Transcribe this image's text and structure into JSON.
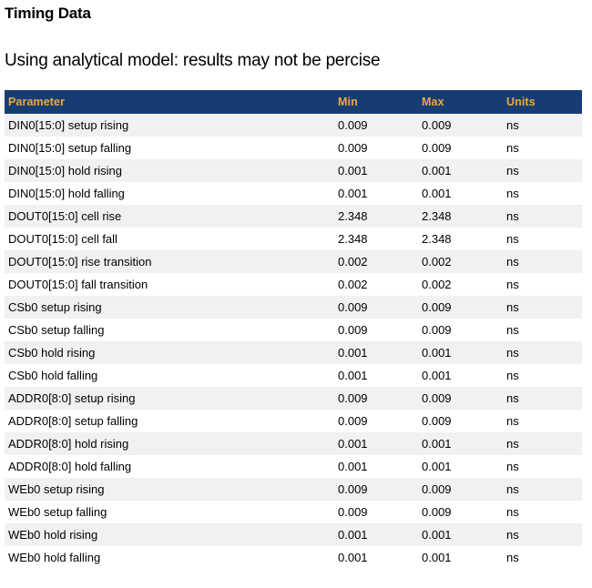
{
  "page": {
    "title": "Timing Data",
    "subtitle": "Using analytical model: results may not be percise"
  },
  "colors": {
    "header_bg": "#163d72",
    "header_text": "#f0a73c",
    "row_alt_bg": "#f0f1f1",
    "row_bg": "#ffffff",
    "text": "#000000"
  },
  "table": {
    "columns": [
      "Parameter",
      "Min",
      "Max",
      "Units"
    ],
    "rows": [
      {
        "parameter": "DIN0[15:0] setup rising",
        "min": "0.009",
        "max": "0.009",
        "units": "ns"
      },
      {
        "parameter": "DIN0[15:0] setup falling",
        "min": "0.009",
        "max": "0.009",
        "units": "ns"
      },
      {
        "parameter": "DIN0[15:0] hold rising",
        "min": "0.001",
        "max": "0.001",
        "units": "ns"
      },
      {
        "parameter": "DIN0[15:0] hold falling",
        "min": "0.001",
        "max": "0.001",
        "units": "ns"
      },
      {
        "parameter": "DOUT0[15:0] cell rise",
        "min": "2.348",
        "max": "2.348",
        "units": "ns"
      },
      {
        "parameter": "DOUT0[15:0] cell fall",
        "min": "2.348",
        "max": "2.348",
        "units": "ns"
      },
      {
        "parameter": "DOUT0[15:0] rise transition",
        "min": "0.002",
        "max": "0.002",
        "units": "ns"
      },
      {
        "parameter": "DOUT0[15:0] fall transition",
        "min": "0.002",
        "max": "0.002",
        "units": "ns"
      },
      {
        "parameter": "CSb0 setup rising",
        "min": "0.009",
        "max": "0.009",
        "units": "ns"
      },
      {
        "parameter": "CSb0 setup falling",
        "min": "0.009",
        "max": "0.009",
        "units": "ns"
      },
      {
        "parameter": "CSb0 hold rising",
        "min": "0.001",
        "max": "0.001",
        "units": "ns"
      },
      {
        "parameter": "CSb0 hold falling",
        "min": "0.001",
        "max": "0.001",
        "units": "ns"
      },
      {
        "parameter": "ADDR0[8:0] setup rising",
        "min": "0.009",
        "max": "0.009",
        "units": "ns"
      },
      {
        "parameter": "ADDR0[8:0] setup falling",
        "min": "0.009",
        "max": "0.009",
        "units": "ns"
      },
      {
        "parameter": "ADDR0[8:0] hold rising",
        "min": "0.001",
        "max": "0.001",
        "units": "ns"
      },
      {
        "parameter": "ADDR0[8:0] hold falling",
        "min": "0.001",
        "max": "0.001",
        "units": "ns"
      },
      {
        "parameter": "WEb0 setup rising",
        "min": "0.009",
        "max": "0.009",
        "units": "ns"
      },
      {
        "parameter": "WEb0 setup falling",
        "min": "0.009",
        "max": "0.009",
        "units": "ns"
      },
      {
        "parameter": "WEb0 hold rising",
        "min": "0.001",
        "max": "0.001",
        "units": "ns"
      },
      {
        "parameter": "WEb0 hold falling",
        "min": "0.001",
        "max": "0.001",
        "units": "ns"
      }
    ]
  }
}
